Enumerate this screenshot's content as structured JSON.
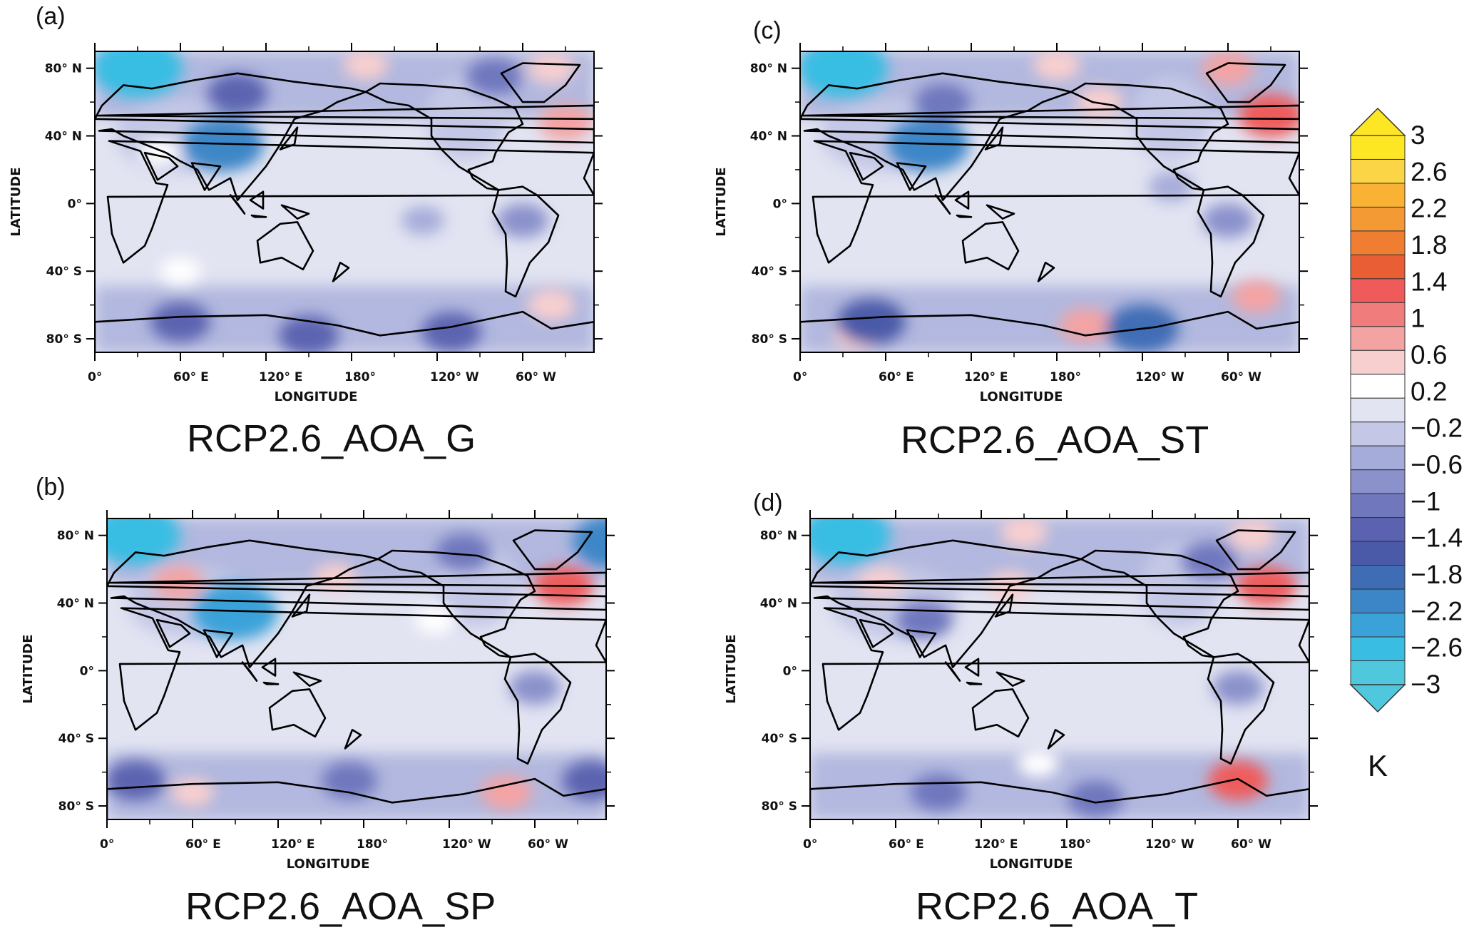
{
  "axes": {
    "xlabel": "LONGITUDE",
    "ylabel": "LATITUDE",
    "x_ticks": [
      "0°",
      "60° E",
      "120° E",
      "180°",
      "120° W",
      "60° W"
    ],
    "y_ticks": [
      "80° N",
      "40° N",
      "0°",
      "40° S",
      "80° S"
    ]
  },
  "panels": [
    {
      "letter": "(a)",
      "title": "RCP2.6_AOA_G"
    },
    {
      "letter": "(b)",
      "title": "RCP2.6_AOA_SP"
    },
    {
      "letter": "(c)",
      "title": "RCP2.6_AOA_ST"
    },
    {
      "letter": "(d)",
      "title": "RCP2.6_AOA_T"
    }
  ],
  "colorbar": {
    "units": "K",
    "labels": [
      "3",
      "2.6",
      "2.2",
      "1.8",
      "1.4",
      "1",
      "0.6",
      "0.2",
      "−0.2",
      "−0.6",
      "−1",
      "−1.4",
      "−1.8",
      "−2.2",
      "−2.6",
      "−3"
    ],
    "colors": [
      "#fde725",
      "#fbd545",
      "#f9b233",
      "#f49a34",
      "#ef7e33",
      "#ea5e36",
      "#ef5b5b",
      "#f07c7c",
      "#f4a3a3",
      "#f8cfcf",
      "#ffffff",
      "#e2e4f2",
      "#c4c8e6",
      "#a6acd9",
      "#8a91cb",
      "#7077bd",
      "#5b63b0",
      "#4b5aa8",
      "#3f6db5",
      "#3c86c7",
      "#3aa2d9",
      "#39bde3",
      "#4fc8dd"
    ],
    "over_color": "#fde725",
    "under_color": "#4fc8dd"
  },
  "chart_data": {
    "type": "heatmap",
    "description_units": "K",
    "x": [
      "0°",
      "60° E",
      "120° E",
      "180°",
      "120° W",
      "60° W"
    ],
    "y": [
      "80° N",
      "40° N",
      "0°",
      "40° S",
      "80° S"
    ],
    "colorbar_levels": [
      -3,
      -2.6,
      -2.2,
      -1.8,
      -1.4,
      -1,
      -0.6,
      -0.2,
      0.2,
      0.6,
      1,
      1.4,
      1.8,
      2.2,
      2.6,
      3
    ],
    "panels": [
      {
        "title": "RCP2.6_AOA_G",
        "features": [
          {
            "lon": 30,
            "lat": 80,
            "value": -2.6
          },
          {
            "lon": 90,
            "lat": 35,
            "value": -2.2
          },
          {
            "lon": 100,
            "lat": 65,
            "value": -1.2
          },
          {
            "lon": 280,
            "lat": 75,
            "value": -1.0
          },
          {
            "lon": 330,
            "lat": 48,
            "value": 0.9
          },
          {
            "lon": 320,
            "lat": 80,
            "value": 0.6
          },
          {
            "lon": 190,
            "lat": 82,
            "value": 0.5
          },
          {
            "lon": 45,
            "lat": 30,
            "value": 0.3
          },
          {
            "lon": 60,
            "lat": -70,
            "value": -1.2
          },
          {
            "lon": 150,
            "lat": -78,
            "value": -1.2
          },
          {
            "lon": 250,
            "lat": -76,
            "value": -1.2
          },
          {
            "lon": 320,
            "lat": -60,
            "value": 0.6
          },
          {
            "lon": 60,
            "lat": -40,
            "value": 0.3
          },
          {
            "lon": 230,
            "lat": -10,
            "value": -0.4
          },
          {
            "lon": 300,
            "lat": -10,
            "value": -0.8
          }
        ]
      },
      {
        "title": "RCP2.6_AOA_SP",
        "features": [
          {
            "lon": 20,
            "lat": 80,
            "value": -2.6
          },
          {
            "lon": 355,
            "lat": 76,
            "value": -2.2
          },
          {
            "lon": 90,
            "lat": 35,
            "value": -2.4
          },
          {
            "lon": 320,
            "lat": 50,
            "value": 1.2
          },
          {
            "lon": 50,
            "lat": 52,
            "value": 0.8
          },
          {
            "lon": 160,
            "lat": 55,
            "value": 0.4
          },
          {
            "lon": 250,
            "lat": 70,
            "value": -1.0
          },
          {
            "lon": 280,
            "lat": -72,
            "value": 0.8
          },
          {
            "lon": 60,
            "lat": -72,
            "value": 0.4
          },
          {
            "lon": 20,
            "lat": -65,
            "value": -1.2
          },
          {
            "lon": 170,
            "lat": -65,
            "value": -1.0
          },
          {
            "lon": 340,
            "lat": -65,
            "value": -1.2
          },
          {
            "lon": 300,
            "lat": -10,
            "value": -0.8
          },
          {
            "lon": 230,
            "lat": 30,
            "value": 0.3
          }
        ]
      },
      {
        "title": "RCP2.6_AOA_ST",
        "features": [
          {
            "lon": 30,
            "lat": 80,
            "value": -2.6
          },
          {
            "lon": 90,
            "lat": 35,
            "value": -2.2
          },
          {
            "lon": 330,
            "lat": 52,
            "value": 1.4
          },
          {
            "lon": 300,
            "lat": 80,
            "value": 0.8
          },
          {
            "lon": 180,
            "lat": 82,
            "value": 0.6
          },
          {
            "lon": 210,
            "lat": 60,
            "value": 0.6
          },
          {
            "lon": 100,
            "lat": 60,
            "value": -1.0
          },
          {
            "lon": 40,
            "lat": -78,
            "value": 0.6
          },
          {
            "lon": 200,
            "lat": -72,
            "value": 0.8
          },
          {
            "lon": 240,
            "lat": -74,
            "value": -1.8
          },
          {
            "lon": 50,
            "lat": -70,
            "value": -1.6
          },
          {
            "lon": 320,
            "lat": -55,
            "value": 0.7
          },
          {
            "lon": 300,
            "lat": -10,
            "value": -0.8
          },
          {
            "lon": 260,
            "lat": 10,
            "value": -0.5
          }
        ]
      },
      {
        "title": "RCP2.6_AOA_T",
        "features": [
          {
            "lon": 25,
            "lat": 80,
            "value": -2.6
          },
          {
            "lon": 80,
            "lat": 30,
            "value": -1.0
          },
          {
            "lon": 320,
            "lat": 50,
            "value": 1.2
          },
          {
            "lon": 310,
            "lat": 80,
            "value": 0.6
          },
          {
            "lon": 150,
            "lat": 82,
            "value": 0.6
          },
          {
            "lon": 50,
            "lat": 52,
            "value": 0.5
          },
          {
            "lon": 140,
            "lat": 50,
            "value": 0.5
          },
          {
            "lon": 280,
            "lat": 65,
            "value": -1.0
          },
          {
            "lon": 300,
            "lat": -65,
            "value": 1.2
          },
          {
            "lon": 90,
            "lat": -72,
            "value": -1.0
          },
          {
            "lon": 200,
            "lat": -76,
            "value": -1.0
          },
          {
            "lon": 160,
            "lat": -55,
            "value": 0.3
          },
          {
            "lon": 300,
            "lat": -10,
            "value": -0.8
          }
        ]
      }
    ]
  }
}
